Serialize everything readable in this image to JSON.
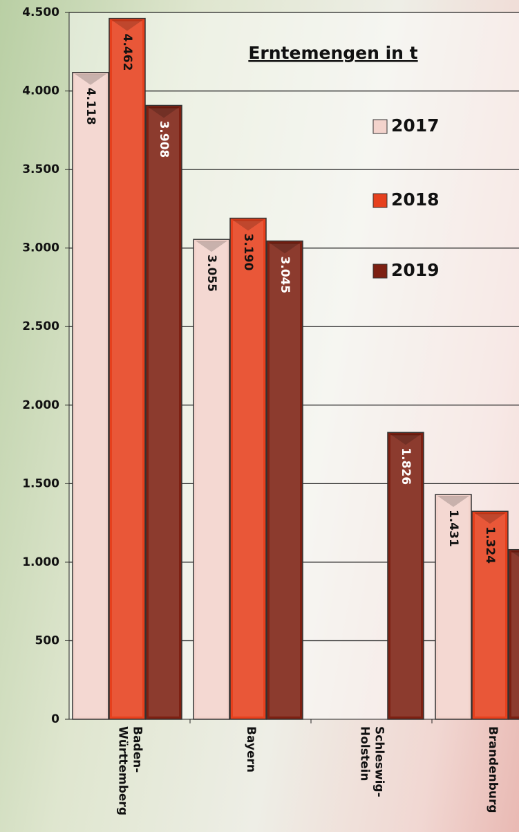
{
  "chart_data": {
    "type": "bar",
    "title": "Erntemengen in t",
    "categories": [
      "Baden-\nWürttemberg",
      "Bayern",
      "Schleswig-\nHolstein",
      "Brandenburg"
    ],
    "series": [
      {
        "name": "2017",
        "color": "#f3d3cc",
        "values": [
          4118,
          3055,
          null,
          1431
        ],
        "value_labels": [
          "4.118",
          "3.055",
          null,
          "1.431"
        ]
      },
      {
        "name": "2018",
        "color": "#e6401d",
        "values": [
          4462,
          3190,
          null,
          1324
        ],
        "value_labels": [
          "4.462",
          "3.190",
          null,
          "1.324"
        ]
      },
      {
        "name": "2019",
        "color": "#7d2012",
        "values": [
          3908,
          3045,
          1826,
          1080
        ],
        "value_labels": [
          "3.908",
          "3.045",
          "1.826",
          null
        ]
      }
    ],
    "ylim": [
      0,
      4500
    ],
    "yticks": [
      0,
      500,
      {
        "value": 1000,
        "label": "1.000"
      },
      {
        "value": 1500,
        "label": "1.500"
      },
      {
        "value": 2000,
        "label": "2.000"
      },
      {
        "value": 2500,
        "label": "2.500"
      },
      {
        "value": 3000,
        "label": "3.000"
      },
      {
        "value": 3500,
        "label": "3.500"
      },
      {
        "value": 4000,
        "label": "4.000"
      },
      {
        "value": 4500,
        "label": "4.500"
      }
    ],
    "grid": true
  }
}
